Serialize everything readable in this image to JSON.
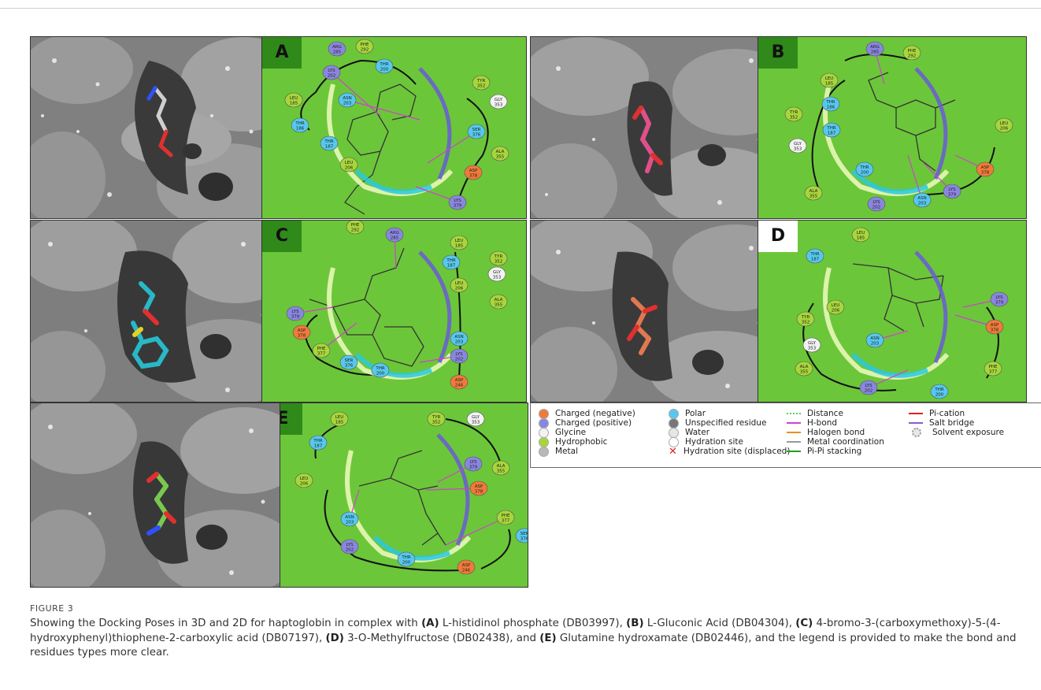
{
  "figure": {
    "label": "FIGURE 3",
    "caption": {
      "intro": "Showing the Docking Poses in 3D and 2D for haptoglobin in complex with ",
      "items": [
        {
          "tag": "(A)",
          "text": " L-histidinol phosphate (DB03997), "
        },
        {
          "tag": "(B)",
          "text": " L-Gluconic Acid (DB04304), "
        },
        {
          "tag": "(C)",
          "text": " 4-bromo-3-(carboxymethoxy)-5-(4-hydroxyphenyl)thiophene-2-carboxylic acid (DB07197), "
        },
        {
          "tag": "(D)",
          "text": " 3-O-Methylfructose (DB02438), and "
        },
        {
          "tag": "(E)",
          "text": " Glutamine hydroxamate (DB02446), and the legend is provided to make the bond and residues types more clear."
        }
      ]
    }
  },
  "panels": {
    "A": {
      "label": "A"
    },
    "B": {
      "label": "B"
    },
    "C": {
      "label": "C"
    },
    "D": {
      "label": "D"
    },
    "E": {
      "label": "E"
    }
  },
  "legend": {
    "residues": [
      {
        "label": "Charged (negative)",
        "color": "#f07a3a"
      },
      {
        "label": "Charged (positive)",
        "color": "#8a86e0"
      },
      {
        "label": "Glycine",
        "color": "#f2f2f2"
      },
      {
        "label": "Hydrophobic",
        "color": "#a8d63a"
      },
      {
        "label": "Metal",
        "color": "#b8b8b8"
      },
      {
        "label": "Polar",
        "color": "#56c8ee"
      },
      {
        "label": "Unspecified residue",
        "color": "#777777"
      },
      {
        "label": "Water",
        "color": "#e6e6e6"
      },
      {
        "label": "Hydration site",
        "color": "#ffffff"
      },
      {
        "label": "Hydration site (displaced)",
        "color": "#e02020"
      }
    ],
    "interactions": [
      {
        "label": "Distance",
        "color": "#5ad05a"
      },
      {
        "label": "H-bond",
        "color": "#d040d0"
      },
      {
        "label": "Halogen bond",
        "color": "#e89020"
      },
      {
        "label": "Metal coordination",
        "color": "#999999"
      },
      {
        "label": "Pi-Pi stacking",
        "color": "#20a020"
      },
      {
        "label": "Pi-cation",
        "color": "#e02020"
      },
      {
        "label": "Salt bridge",
        "color": "#8a5ad0"
      },
      {
        "label": "Solvent exposure",
        "color": "#bbbbbb"
      }
    ]
  },
  "residues": {
    "A": [
      "ARG 285",
      "PHE 292",
      "LYS 202",
      "THR 200",
      "TYR 352",
      "LEU 185",
      "ASN 203",
      "GLY 353",
      "THR 186",
      "SER 376",
      "THR 187",
      "ALA 355",
      "LEU 206",
      "ASP 378",
      "LYS 379"
    ],
    "B": [
      "ARG 285",
      "PHE 292",
      "LEU 185",
      "THR 186",
      "THR 187",
      "TYR 352",
      "GLY 353",
      "LEU 206",
      "THR 200",
      "ASP 378",
      "ALA 355",
      "LYS 379",
      "LYS 202",
      "ASN 203"
    ],
    "C": [
      "PHE 292",
      "ARG 285",
      "LEU 185",
      "TYR 352",
      "THR 187",
      "GLY 353",
      "LEU 206",
      "ALA 355",
      "LYS 379",
      "ASP 378",
      "PHE 377",
      "ASN 203",
      "SER 376",
      "LYS 202",
      "THR 200",
      "ASP 246"
    ],
    "D": [
      "LEU 185",
      "THR 187",
      "LEU 206",
      "LYS 379",
      "TYR 352",
      "ASP 378",
      "GLY 353",
      "ASN 203",
      "PHE 377",
      "ALA 355",
      "LYS 202",
      "THR 200"
    ],
    "E": [
      "LEU 185",
      "TYR 352",
      "GLY 353",
      "THR 187",
      "LYS 379",
      "ALA 355",
      "LEU 206",
      "ASP 378",
      "PHE 377",
      "ASN 203",
      "SER 376",
      "LYS 202",
      "THR 200",
      "ASP 246"
    ]
  }
}
